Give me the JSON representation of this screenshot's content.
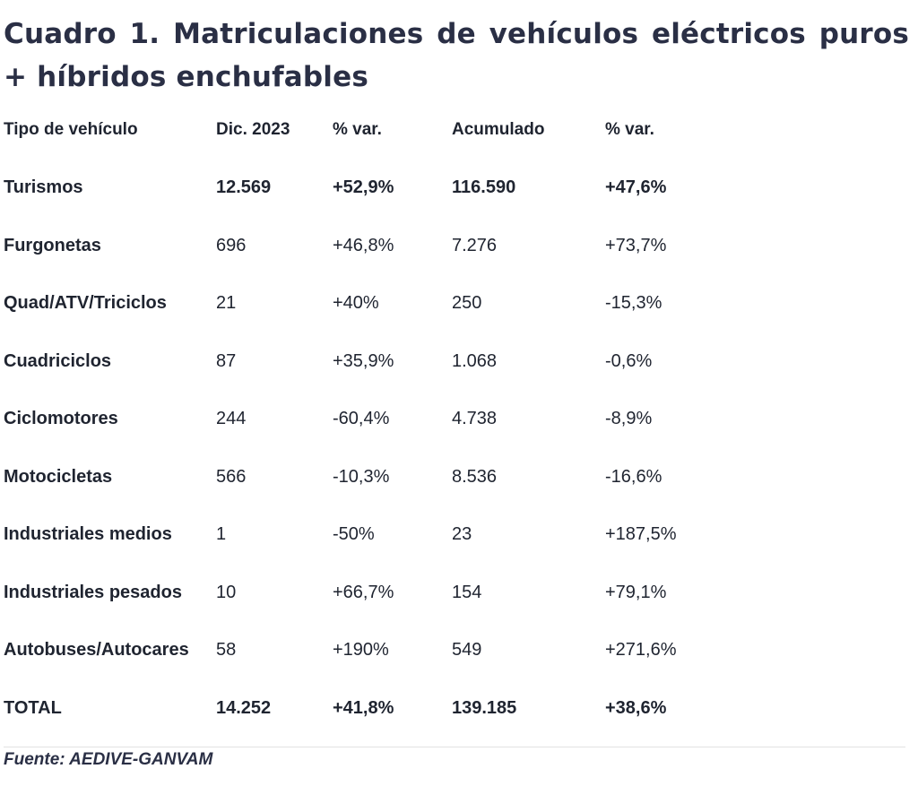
{
  "title": "Cuadro 1. Matriculaciones de vehículos eléctricos puros + híbridos enchufables",
  "table": {
    "headers": [
      "Tipo de vehículo",
      "Dic. 2023",
      "% var.",
      "Acumulado",
      "% var."
    ],
    "rows": [
      {
        "tipo": "Turismos",
        "dic": "12.569",
        "var1": "+52,9%",
        "acum": "116.590",
        "var2": "+47,6%"
      },
      {
        "tipo": "Furgonetas",
        "dic": "696",
        "var1": "+46,8%",
        "acum": "7.276",
        "var2": "+73,7%"
      },
      {
        "tipo": "Quad/ATV/Triciclos",
        "dic": "21",
        "var1": "+40%",
        "acum": "250",
        "var2": "-15,3%"
      },
      {
        "tipo": "Cuadriciclos",
        "dic": "87",
        "var1": "+35,9%",
        "acum": "1.068",
        "var2": "-0,6%"
      },
      {
        "tipo": "Ciclomotores",
        "dic": "244",
        "var1": "-60,4%",
        "acum": "4.738",
        "var2": "-8,9%"
      },
      {
        "tipo": "Motocicletas",
        "dic": "566",
        "var1": "-10,3%",
        "acum": "8.536",
        "var2": "-16,6%"
      },
      {
        "tipo": "Industriales medios",
        "dic": "1",
        "var1": "-50%",
        "acum": "23",
        "var2": "+187,5%"
      },
      {
        "tipo": "Industriales pesados",
        "dic": "10",
        "var1": "+66,7%",
        "acum": "154",
        "var2": "+79,1%"
      },
      {
        "tipo": "Autobuses/Autocares",
        "dic": "58",
        "var1": "+190%",
        "acum": "549",
        "var2": "+271,6%"
      },
      {
        "tipo": "TOTAL",
        "dic": "14.252",
        "var1": "+41,8%",
        "acum": "139.185",
        "var2": "+38,6%"
      }
    ]
  },
  "source": "Fuente: AEDIVE-GANVAM"
}
